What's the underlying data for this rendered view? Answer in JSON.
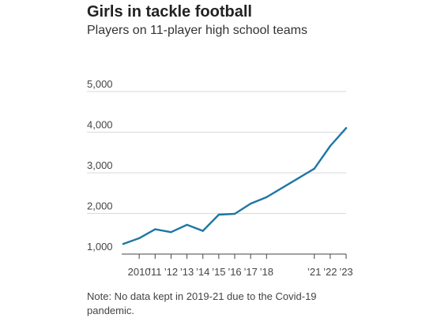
{
  "chart_data": {
    "type": "line",
    "title": "Girls in tackle football",
    "subtitle": "Players on 11-player high school teams",
    "note": "Note: No data kept in 2019-21 due to the Covid-19 pandemic.",
    "x": [
      2009,
      2010,
      2011,
      2012,
      2013,
      2014,
      2015,
      2016,
      2017,
      2018,
      2021,
      2022,
      2023
    ],
    "x_tick_labels": [
      "2010",
      "’11",
      "’12",
      "’13",
      "’14",
      "’15",
      "’16",
      "’17",
      "’18",
      "’21",
      "’22",
      "’23"
    ],
    "x_tick_values": [
      2010,
      2011,
      2012,
      2013,
      2014,
      2015,
      2016,
      2017,
      2018,
      2021,
      2022,
      2023
    ],
    "series": [
      {
        "values": [
          1250,
          1390,
          1610,
          1540,
          1720,
          1570,
          1970,
          1990,
          2240,
          2400,
          3100,
          3660,
          4100
        ]
      }
    ],
    "y_ticks": [
      1000,
      2000,
      3000,
      4000,
      5000
    ],
    "y_tick_labels": [
      "1,000",
      "2,000",
      "3,000",
      "4,000",
      "5,000"
    ],
    "ylim": [
      1000,
      5000
    ],
    "xlim": [
      2009,
      2023
    ],
    "grid": true,
    "colors": {
      "line": "#1f77a4",
      "grid": "#d9d9d9",
      "axis": "#444444"
    }
  }
}
